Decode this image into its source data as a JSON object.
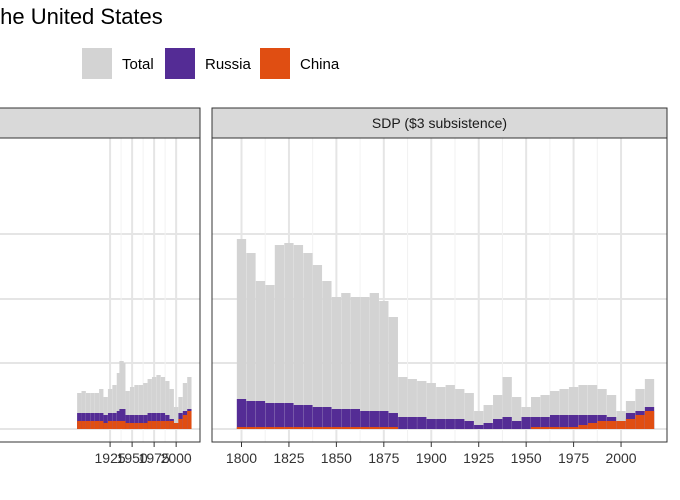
{
  "title": "the United States",
  "legend": [
    {
      "label": "Total",
      "color": "#d3d3d3"
    },
    {
      "label": "Russia",
      "color": "#542c95"
    },
    {
      "label": "China",
      "color": "#e04e12"
    }
  ],
  "chart_data": [
    {
      "type": "bar",
      "panel_title": "",
      "xlim": [
        1800,
        2018
      ],
      "ylim": [
        0,
        1.5
      ],
      "xticks": [
        1925,
        1950,
        1975,
        2000
      ],
      "x": [
        1890,
        1895,
        1900,
        1905,
        1910,
        1915,
        1920,
        1925,
        1930,
        1935,
        1938,
        1940,
        1945,
        1950,
        1955,
        1960,
        1965,
        1970,
        1975,
        1980,
        1985,
        1990,
        1995,
        2000,
        2005,
        2010,
        2015
      ],
      "series": [
        {
          "name": "Total",
          "values": [
            0.18,
            0.19,
            0.18,
            0.18,
            0.18,
            0.2,
            0.16,
            0.2,
            0.22,
            0.28,
            0.34,
            0.33,
            0.19,
            0.21,
            0.22,
            0.22,
            0.23,
            0.25,
            0.26,
            0.27,
            0.26,
            0.24,
            0.2,
            0.11,
            0.16,
            0.23,
            0.26
          ]
        },
        {
          "name": "Russia",
          "values": [
            0.08,
            0.08,
            0.08,
            0.08,
            0.08,
            0.08,
            0.07,
            0.08,
            0.08,
            0.09,
            0.1,
            0.1,
            0.07,
            0.07,
            0.07,
            0.07,
            0.07,
            0.08,
            0.08,
            0.08,
            0.08,
            0.07,
            0.05,
            0.03,
            0.08,
            0.09,
            0.1
          ]
        },
        {
          "name": "China",
          "values": [
            0.04,
            0.04,
            0.04,
            0.04,
            0.04,
            0.04,
            0.03,
            0.04,
            0.04,
            0.04,
            0.04,
            0.04,
            0.03,
            0.03,
            0.03,
            0.03,
            0.03,
            0.04,
            0.04,
            0.04,
            0.04,
            0.04,
            0.04,
            0.03,
            0.05,
            0.07,
            0.09
          ]
        }
      ]
    },
    {
      "type": "bar",
      "panel_title": "SDP ($3 subsistence)",
      "xlim": [
        1795,
        2020
      ],
      "ylim": [
        0,
        1.5
      ],
      "xticks": [
        1800,
        1825,
        1850,
        1875,
        1900,
        1925,
        1950,
        1975,
        2000
      ],
      "x": [
        1800,
        1805,
        1810,
        1815,
        1820,
        1825,
        1830,
        1835,
        1840,
        1845,
        1850,
        1855,
        1860,
        1865,
        1870,
        1875,
        1880,
        1885,
        1890,
        1895,
        1900,
        1905,
        1910,
        1915,
        1920,
        1925,
        1930,
        1935,
        1940,
        1945,
        1950,
        1955,
        1960,
        1965,
        1970,
        1975,
        1980,
        1985,
        1990,
        1995,
        2000,
        2005,
        2010,
        2015
      ],
      "series": [
        {
          "name": "Total",
          "values": [
            0.95,
            0.88,
            0.74,
            0.72,
            0.92,
            0.93,
            0.92,
            0.88,
            0.82,
            0.74,
            0.66,
            0.68,
            0.66,
            0.66,
            0.68,
            0.64,
            0.56,
            0.26,
            0.25,
            0.24,
            0.23,
            0.21,
            0.22,
            0.2,
            0.18,
            0.09,
            0.12,
            0.17,
            0.26,
            0.16,
            0.11,
            0.16,
            0.17,
            0.19,
            0.2,
            0.21,
            0.22,
            0.22,
            0.2,
            0.17,
            0.09,
            0.14,
            0.2,
            0.25
          ]
        },
        {
          "name": "Russia",
          "values": [
            0.15,
            0.14,
            0.14,
            0.13,
            0.13,
            0.13,
            0.12,
            0.12,
            0.11,
            0.11,
            0.1,
            0.1,
            0.1,
            0.09,
            0.09,
            0.09,
            0.08,
            0.06,
            0.06,
            0.06,
            0.05,
            0.05,
            0.05,
            0.05,
            0.04,
            0.02,
            0.03,
            0.05,
            0.06,
            0.04,
            0.06,
            0.06,
            0.06,
            0.07,
            0.07,
            0.07,
            0.07,
            0.07,
            0.07,
            0.06,
            0.04,
            0.08,
            0.09,
            0.11
          ]
        },
        {
          "name": "China",
          "values": [
            0.01,
            0.01,
            0.01,
            0.01,
            0.01,
            0.01,
            0.01,
            0.01,
            0.01,
            0.01,
            0.01,
            0.01,
            0.01,
            0.01,
            0.01,
            0.01,
            0.01,
            0.0,
            0.0,
            0.0,
            0.0,
            0.0,
            0.0,
            0.0,
            0.0,
            0.0,
            0.0,
            0.0,
            0.0,
            0.0,
            0.0,
            0.01,
            0.01,
            0.01,
            0.01,
            0.01,
            0.02,
            0.03,
            0.04,
            0.04,
            0.04,
            0.05,
            0.07,
            0.09
          ]
        }
      ]
    }
  ]
}
